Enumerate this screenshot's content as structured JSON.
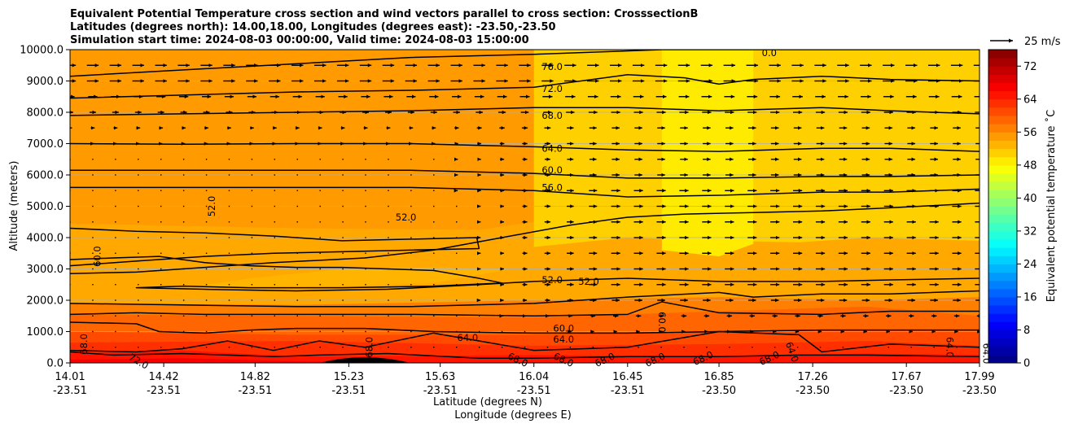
{
  "chart_data": {
    "type": "heatmap",
    "subtype": "filled-contour cross section with wind vectors",
    "title_lines": [
      "Equivalent Potential Temperature cross section and wind vectors parallel to cross section: CrosssectionB",
      "Latitudes (degrees north): 14.00,18.00, Longitudes (degrees east): -23.50,-23.50",
      "Simulation start time: 2024-08-03 00:00:00, Valid time: 2024-08-03 15:00:00"
    ],
    "xlabel_line1": "Latitude (degrees N)",
    "xlabel_line2": "Longitude (degrees E)",
    "ylabel": "Altitude (meters)",
    "xlim": [
      14.01,
      17.99
    ],
    "ylim": [
      0,
      10000
    ],
    "x_ticks": [
      {
        "lat": "14.01",
        "lon": "-23.51",
        "value": 14.01
      },
      {
        "lat": "14.42",
        "lon": "-23.51",
        "value": 14.42
      },
      {
        "lat": "14.82",
        "lon": "-23.51",
        "value": 14.82
      },
      {
        "lat": "15.23",
        "lon": "-23.51",
        "value": 15.23
      },
      {
        "lat": "15.63",
        "lon": "-23.51",
        "value": 15.63
      },
      {
        "lat": "16.04",
        "lon": "-23.51",
        "value": 16.04
      },
      {
        "lat": "16.45",
        "lon": "-23.51",
        "value": 16.45
      },
      {
        "lat": "16.85",
        "lon": "-23.50",
        "value": 16.85
      },
      {
        "lat": "17.26",
        "lon": "-23.50",
        "value": 17.26
      },
      {
        "lat": "17.67",
        "lon": "-23.50",
        "value": 17.67
      },
      {
        "lat": "17.99",
        "lon": "-23.50",
        "value": 17.99
      }
    ],
    "y_ticks": [
      {
        "label": "0.0",
        "value": 0
      },
      {
        "label": "1000.0",
        "value": 1000
      },
      {
        "label": "2000.0",
        "value": 2000
      },
      {
        "label": "3000.0",
        "value": 3000
      },
      {
        "label": "4000.0",
        "value": 4000
      },
      {
        "label": "5000.0",
        "value": 5000
      },
      {
        "label": "6000.0",
        "value": 6000
      },
      {
        "label": "7000.0",
        "value": 7000
      },
      {
        "label": "8000.0",
        "value": 8000
      },
      {
        "label": "9000.0",
        "value": 9000
      },
      {
        "label": "10000.0",
        "value": 10000
      }
    ],
    "grid": "horizontal gridlines at y ticks",
    "colorbar": {
      "label": "Equivalent potential temperature $^\\circ$C",
      "label_text": "Equivalent potential temperature ˚C",
      "range": [
        0,
        76
      ],
      "ticks": [
        "0",
        "8",
        "16",
        "24",
        "32",
        "40",
        "48",
        "56",
        "64",
        "72"
      ],
      "tick_values": [
        0,
        8,
        16,
        24,
        32,
        40,
        48,
        56,
        64,
        72
      ],
      "colormap": "jet",
      "levels_step": 2
    },
    "quiver_key": {
      "label": "25 m/s",
      "value": 25
    },
    "fill_bands": [
      {
        "level": 76,
        "x": [
          14.01,
          15.0,
          15.8,
          16.04,
          16.45,
          17.0,
          17.99
        ],
        "ymin": [
          9400,
          9550,
          9750,
          9850,
          10000,
          10000,
          10000
        ]
      },
      {
        "level": 74,
        "x": [
          14.01,
          15.0,
          16.04,
          16.6,
          17.0,
          17.5,
          17.99
        ],
        "ymin": [
          9050,
          9150,
          9350,
          9700,
          9600,
          9500,
          9350
        ]
      },
      {
        "level": 72,
        "x": [
          14.01,
          15.0,
          16.04,
          16.6,
          16.85,
          17.3,
          17.99
        ],
        "ymin": [
          8650,
          8700,
          8850,
          9000,
          8950,
          9100,
          9000
        ]
      },
      {
        "level": 70,
        "x": [
          14.01,
          15.0,
          16.04,
          16.85,
          17.5,
          17.99
        ],
        "ymin": [
          8200,
          8250,
          8350,
          8400,
          8450,
          8300
        ]
      },
      {
        "level": 68,
        "x": [
          14.01,
          15.0,
          16.04,
          16.85,
          17.5,
          17.99
        ],
        "ymin": [
          7700,
          7800,
          7850,
          7900,
          7950,
          7850
        ]
      },
      {
        "level": 66,
        "x": [
          14.01,
          15.0,
          16.04,
          16.85,
          17.5,
          17.99
        ],
        "ymin": [
          7300,
          7350,
          7400,
          7350,
          7300,
          7250
        ]
      },
      {
        "level": 64,
        "x": [
          14.01,
          15.0,
          16.04,
          16.85,
          17.5,
          17.99
        ],
        "ymin": [
          6950,
          6950,
          6900,
          6850,
          6900,
          6750
        ]
      },
      {
        "level": 62,
        "x": [
          14.01,
          15.0,
          16.04,
          16.85,
          17.5,
          17.99
        ],
        "ymin": [
          6550,
          6550,
          6500,
          6450,
          6450,
          6400
        ]
      },
      {
        "level": 60,
        "x": [
          14.01,
          15.0,
          16.04,
          16.85,
          17.5,
          17.99
        ],
        "ymin": [
          6150,
          6150,
          6100,
          5950,
          5900,
          5950
        ]
      },
      {
        "level": 58,
        "x": [
          14.01,
          15.0,
          16.04,
          16.85,
          17.5,
          17.99
        ],
        "ymin": [
          5800,
          5800,
          5700,
          5500,
          5400,
          5350
        ]
      },
      {
        "level": 56,
        "x": [
          14.01,
          15.0,
          16.04,
          16.45,
          16.85,
          17.5,
          17.99
        ],
        "ymin": [
          5500,
          5500,
          5300,
          5050,
          5000,
          5000,
          5100
        ]
      },
      {
        "level": 54,
        "x": [
          14.01,
          15.0,
          15.8,
          16.04,
          16.45,
          17.0,
          17.5,
          17.99
        ],
        "ymin": [
          4450,
          4300,
          4250,
          4500,
          4750,
          4800,
          4750,
          4700
        ]
      },
      {
        "level": 50,
        "x": [
          16.04,
          16.45,
          16.85,
          17.2,
          17.5,
          17.99
        ],
        "ymin": [
          3700,
          4000,
          3900,
          3850,
          4000,
          3900
        ]
      },
      {
        "level": 48,
        "x": [
          16.6,
          16.85,
          17.0
        ],
        "ymin": [
          3600,
          3400,
          3800
        ]
      },
      {
        "level": 56,
        "x": [
          14.01,
          15.0,
          16.04,
          16.85,
          17.5,
          17.99
        ],
        "ymin": [
          1900,
          1850,
          2000,
          2100,
          2000,
          2100
        ]
      },
      {
        "level": 58,
        "x": [
          14.01,
          15.0,
          16.04,
          16.85,
          17.5,
          17.99
        ],
        "ymin": [
          1550,
          1500,
          1450,
          1650,
          1800,
          1500
        ]
      },
      {
        "level": 60,
        "x": [
          14.01,
          15.0,
          16.04,
          16.85,
          17.5,
          17.99
        ],
        "ymin": [
          1000,
          900,
          900,
          1000,
          1050,
          1000
        ]
      },
      {
        "level": 62,
        "x": [
          14.01,
          15.0,
          16.04,
          16.85,
          17.5,
          17.99
        ],
        "ymin": [
          650,
          700,
          550,
          600,
          700,
          550
        ]
      },
      {
        "level": 64,
        "x": [
          14.01,
          14.5,
          15.0,
          16.04,
          16.85,
          17.5,
          17.99
        ],
        "ymin": [
          300,
          400,
          200,
          250,
          200,
          300,
          250
        ]
      },
      {
        "level": 66,
        "x": [
          14.01,
          14.5,
          15.0,
          16.04,
          16.85,
          17.5,
          17.99
        ],
        "ymin": [
          100,
          150,
          50,
          0,
          0,
          0,
          0
        ]
      }
    ],
    "low_core": {
      "level": 52,
      "x": [
        14.51,
        14.8,
        15.2,
        15.6,
        15.94,
        15.6,
        15.2,
        14.8,
        14.51
      ],
      "y": [
        2400,
        2700,
        3000,
        3050,
        3000,
        2550,
        2450,
        2400,
        2400
      ]
    },
    "contours": [
      {
        "x": [
          14.01,
          14.5,
          15.0,
          15.5,
          16.04,
          16.6,
          17.0,
          17.99
        ],
        "y": [
          9150,
          9350,
          9550,
          9750,
          9850,
          10000,
          10000,
          10000
        ]
      },
      {
        "x": [
          14.01,
          14.5,
          15.0,
          15.5,
          16.04,
          16.45,
          16.7,
          16.85,
          17.0,
          17.3,
          17.6,
          17.99
        ],
        "y": [
          8450,
          8550,
          8650,
          8700,
          8800,
          9200,
          9100,
          8900,
          9050,
          9150,
          9050,
          9000
        ]
      },
      {
        "x": [
          14.01,
          14.5,
          15.0,
          15.5,
          16.04,
          16.45,
          16.85,
          17.3,
          17.6,
          17.99
        ],
        "y": [
          7900,
          7950,
          8000,
          8050,
          8150,
          8150,
          8050,
          8150,
          8050,
          7950
        ]
      },
      {
        "x": [
          14.01,
          14.5,
          15.0,
          15.5,
          16.04,
          16.45,
          16.85,
          17.3,
          17.6,
          17.99
        ],
        "y": [
          7000,
          6980,
          7000,
          7000,
          6900,
          6800,
          6750,
          6850,
          6850,
          6750
        ]
      },
      {
        "x": [
          14.01,
          14.5,
          15.0,
          15.5,
          16.04,
          16.45,
          16.85,
          17.3,
          17.6,
          17.99
        ],
        "y": [
          6150,
          6150,
          6150,
          6150,
          6050,
          5900,
          5900,
          5950,
          5950,
          6000
        ]
      },
      {
        "x": [
          14.01,
          14.5,
          15.0,
          15.5,
          16.04,
          16.45,
          16.85,
          17.3,
          17.6,
          17.99
        ],
        "y": [
          5600,
          5600,
          5600,
          5600,
          5500,
          5300,
          5350,
          5450,
          5450,
          5550
        ]
      },
      {
        "x": [
          14.01,
          14.3,
          14.6,
          14.9,
          15.3,
          15.6,
          15.9,
          16.2,
          16.45,
          16.7,
          17.0,
          17.3,
          17.6,
          17.99
        ],
        "y": [
          2850,
          2900,
          3050,
          3200,
          3350,
          3600,
          4000,
          4400,
          4650,
          4750,
          4800,
          4850,
          4950,
          5100
        ]
      },
      {
        "x": [
          14.01,
          14.3,
          14.6,
          14.9,
          15.2,
          15.5,
          15.79,
          15.8,
          15.5,
          15.2,
          14.9,
          14.6,
          14.3,
          14.01
        ],
        "y": [
          4300,
          4200,
          4150,
          4050,
          3900,
          3950,
          4000,
          3650,
          3600,
          3550,
          3500,
          3400,
          3250,
          3100
        ]
      },
      {
        "x": [
          14.01,
          14.2,
          14.4,
          14.6,
          14.8,
          15.0,
          15.2,
          15.4,
          15.6,
          15.8,
          15.9,
          15.6,
          15.2,
          14.8,
          14.51,
          14.3,
          14.6,
          15.0,
          15.4,
          15.8,
          16.04,
          16.45,
          16.85,
          17.3,
          17.6,
          17.99
        ],
        "y": [
          3300,
          3350,
          3400,
          3200,
          3100,
          3050,
          3050,
          3000,
          2950,
          2700,
          2550,
          2450,
          2400,
          2400,
          2450,
          2400,
          2350,
          2300,
          2350,
          2500,
          2600,
          2700,
          2600,
          2600,
          2650,
          2700
        ]
      },
      {
        "x": [
          14.01,
          14.5,
          15.0,
          15.5,
          16.04,
          16.45,
          16.85,
          17.0,
          17.3,
          17.6,
          17.99
        ],
        "y": [
          1900,
          1850,
          1800,
          1800,
          1900,
          2100,
          2250,
          2100,
          2200,
          2200,
          2300
        ]
      },
      {
        "x": [
          14.01,
          14.3,
          14.6,
          15.0,
          15.5,
          16.04,
          16.45,
          16.6,
          16.85,
          17.3,
          17.6,
          17.99
        ],
        "y": [
          1550,
          1600,
          1550,
          1550,
          1550,
          1500,
          1550,
          1950,
          1600,
          1550,
          1650,
          1650
        ]
      },
      {
        "x": [
          14.01,
          14.3,
          14.4,
          14.6,
          14.8,
          15.0,
          15.3,
          15.6,
          16.04,
          16.45,
          16.85,
          17.3,
          17.6,
          17.99
        ],
        "y": [
          1300,
          1250,
          1000,
          950,
          1050,
          1100,
          1100,
          1000,
          950,
          950,
          1000,
          1050,
          1050,
          1050
        ]
      },
      {
        "x": [
          14.01,
          14.3,
          14.5,
          14.7,
          14.9,
          15.1,
          15.3,
          15.5,
          15.6,
          15.8,
          16.04,
          16.45,
          16.85,
          17.2,
          17.3,
          17.6,
          17.99
        ],
        "y": [
          400,
          350,
          450,
          700,
          400,
          700,
          500,
          800,
          950,
          700,
          400,
          500,
          1000,
          900,
          350,
          600,
          500
        ]
      },
      {
        "x": [
          14.01,
          14.2,
          14.5,
          14.9,
          15.1,
          15.4,
          15.8,
          16.04,
          16.45,
          16.85,
          17.2,
          17.5,
          17.99
        ],
        "y": [
          350,
          250,
          300,
          200,
          250,
          300,
          150,
          150,
          200,
          200,
          250,
          250,
          200
        ]
      }
    ],
    "terrain": {
      "x": [
        15.1,
        15.3,
        15.5
      ],
      "y": [
        0,
        150,
        0
      ]
    },
    "contour_labels": [
      {
        "text": "76.0",
        "x": 16.12,
        "y": 9450
      },
      {
        "text": "72.0",
        "x": 16.12,
        "y": 8750
      },
      {
        "text": "68.0",
        "x": 16.12,
        "y": 7900
      },
      {
        "text": "64.0",
        "x": 16.12,
        "y": 6850
      },
      {
        "text": "60.0",
        "x": 16.12,
        "y": 6150
      },
      {
        "text": "56.0",
        "x": 16.12,
        "y": 5600
      },
      {
        "text": "52.0",
        "x": 15.48,
        "y": 4650
      },
      {
        "text": "52.0",
        "x": 16.12,
        "y": 2650
      },
      {
        "text": "52.0",
        "x": 16.28,
        "y": 2600
      },
      {
        "text": "60.0",
        "x": 16.17,
        "y": 1100
      },
      {
        "text": "64.0",
        "x": 16.17,
        "y": 750
      },
      {
        "text": "64.0",
        "x": 15.75,
        "y": 800
      }
    ],
    "contour_labels_rotated": [
      {
        "text": "52.0",
        "x": 14.63,
        "y": 5000,
        "angle": -90
      },
      {
        "text": "60.0",
        "x": 14.13,
        "y": 3400,
        "angle": -90
      },
      {
        "text": "68.0",
        "x": 14.07,
        "y": 600,
        "angle": -90
      },
      {
        "text": "68.0",
        "x": 15.32,
        "y": 500,
        "angle": -90
      },
      {
        "text": "72.0",
        "x": 14.31,
        "y": 50,
        "angle": 30
      },
      {
        "text": "68.0",
        "x": 15.97,
        "y": 100,
        "angle": 25
      },
      {
        "text": "68.0",
        "x": 16.17,
        "y": 100,
        "angle": 25
      },
      {
        "text": "68.0",
        "x": 16.35,
        "y": 100,
        "angle": -25
      },
      {
        "text": "68.0",
        "x": 16.57,
        "y": 100,
        "angle": -25
      },
      {
        "text": "68.0",
        "x": 16.78,
        "y": 150,
        "angle": -25
      },
      {
        "text": "68.0",
        "x": 17.07,
        "y": 150,
        "angle": -25
      },
      {
        "text": "60.0",
        "x": 16.6,
        "y": 1300,
        "angle": 90
      },
      {
        "text": "64.0",
        "x": 17.17,
        "y": 350,
        "angle": 70
      },
      {
        "text": "64.0",
        "x": 17.86,
        "y": 500,
        "angle": 90
      },
      {
        "text": "64.0",
        "x": 18.02,
        "y": 300,
        "angle": 90
      },
      {
        "text": "0.0",
        "x": 17.07,
        "y": 9900,
        "angle": 0
      }
    ],
    "wind_field": {
      "x_start": 14.01,
      "x_step": 0.0995,
      "columns": 41,
      "levels": [
        9500,
        9000,
        8500,
        8000,
        7500,
        7000,
        6500,
        6000,
        5500,
        5000,
        4500,
        4000,
        3500,
        3000,
        2500,
        2000,
        1500,
        1000,
        500
      ],
      "speed_by_level_west": [
        9,
        9,
        7,
        5,
        3,
        2,
        1.5,
        1.5,
        1,
        0.5,
        0.5,
        0.5,
        0.5,
        0.5,
        0.5,
        0.5,
        0.5,
        0.5,
        0.5
      ],
      "speed_by_level_east": [
        9,
        9,
        8,
        7,
        6,
        6,
        6,
        6,
        7,
        7,
        7,
        7,
        7,
        7,
        7,
        6,
        4,
        2,
        1
      ],
      "transition_x": 16.0
    }
  }
}
